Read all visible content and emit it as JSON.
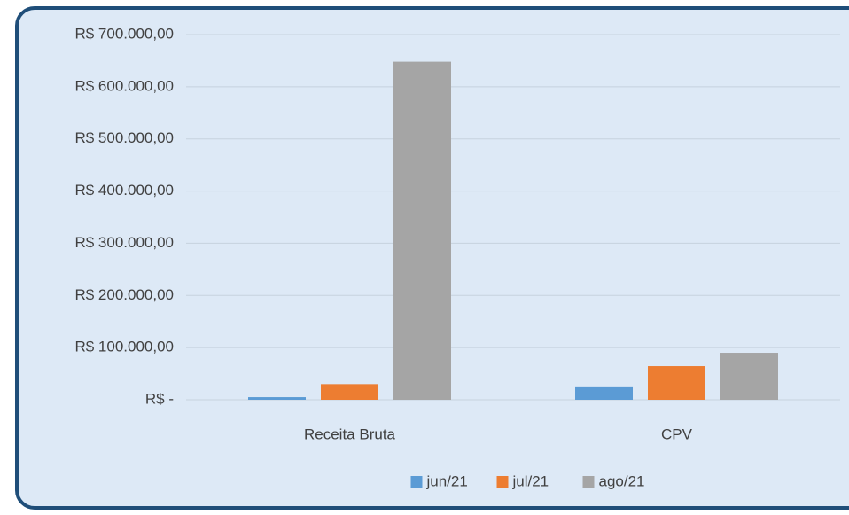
{
  "chart_data": {
    "type": "bar",
    "categories": [
      "Receita Bruta",
      "CPV"
    ],
    "series": [
      {
        "name": "jun/21",
        "color": "#5b9bd5",
        "values": [
          5000,
          24000
        ]
      },
      {
        "name": "jul/21",
        "color": "#ed7d31",
        "values": [
          30000,
          64500
        ]
      },
      {
        "name": "ago/21",
        "color": "#a5a5a5",
        "values": [
          648000,
          90000
        ]
      }
    ],
    "ylim": [
      0,
      700000
    ],
    "yticks": [
      {
        "value": 0,
        "label": "R$ -"
      },
      {
        "value": 100000,
        "label": "R$ 100.000,00"
      },
      {
        "value": 200000,
        "label": "R$ 200.000,00"
      },
      {
        "value": 300000,
        "label": "R$ 300.000,00"
      },
      {
        "value": 400000,
        "label": "R$ 400.000,00"
      },
      {
        "value": 500000,
        "label": "R$ 500.000,00"
      },
      {
        "value": 600000,
        "label": "R$ 600.000,00"
      },
      {
        "value": 700000,
        "label": "R$ 700.000,00"
      }
    ],
    "grid": true,
    "legend": "bottom"
  }
}
